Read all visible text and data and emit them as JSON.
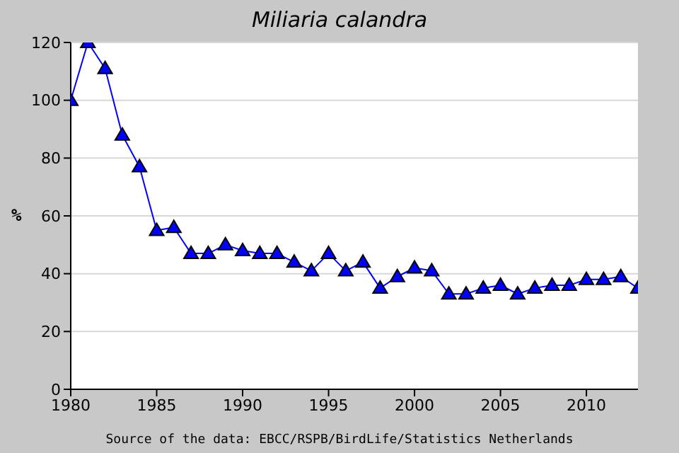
{
  "chart_data": {
    "type": "line",
    "title": "Miliaria calandra",
    "ylabel": "%",
    "annotations": [
      "Source of the data: EBCC/RSPB/BirdLife/Statistics Netherlands"
    ],
    "x": [
      1980,
      1981,
      1982,
      1983,
      1984,
      1985,
      1986,
      1987,
      1988,
      1989,
      1990,
      1991,
      1992,
      1993,
      1994,
      1995,
      1996,
      1997,
      1998,
      1999,
      2000,
      2001,
      2002,
      2003,
      2004,
      2005,
      2006,
      2007,
      2008,
      2009,
      2010,
      2011,
      2012,
      2013
    ],
    "series": [
      {
        "color": "#0000ff",
        "values": [
          100,
          120,
          111,
          88,
          77,
          55,
          56,
          47,
          47,
          50,
          48,
          47,
          47,
          44,
          41,
          47,
          41,
          44,
          35,
          39,
          42,
          41,
          33,
          33,
          35,
          36,
          33,
          35,
          36,
          36,
          38,
          38,
          39,
          35
        ]
      }
    ],
    "xlim": [
      1980,
      2013
    ],
    "xticks": [
      1980,
      1985,
      1990,
      1995,
      2000,
      2005,
      2010
    ],
    "ylim": [
      0,
      120
    ],
    "yticks": [
      0,
      20,
      40,
      60,
      80,
      100,
      120
    ],
    "grid": "y",
    "marker": "triangle",
    "line_style": "solid",
    "legend": false
  }
}
